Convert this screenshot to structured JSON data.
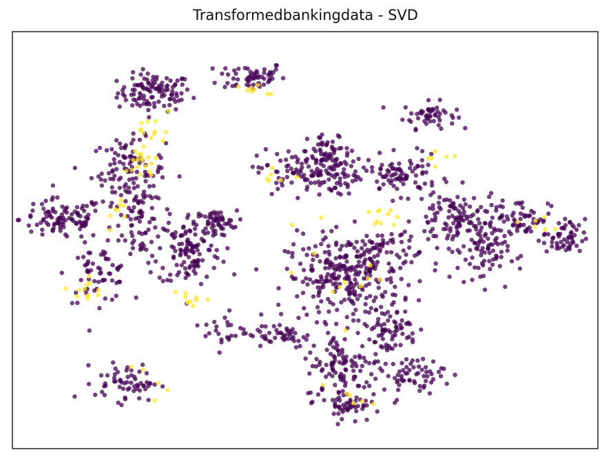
{
  "chart_data": {
    "type": "scatter",
    "title": "Transformedbankingdata - SVD",
    "xlabel": "",
    "ylabel": "",
    "show_ticks": false,
    "grid": false,
    "legend": "none",
    "xlim": [
      -50,
      50
    ],
    "ylim": [
      -40,
      40
    ],
    "class_colors": {
      "class_0": "#440154",
      "class_1": "#fde725"
    },
    "marker_opacity": 0.75,
    "series": [
      {
        "class": 0,
        "points_note": "dark purple clusters",
        "clusters": [
          {
            "x": -25.7,
            "y": 28.3,
            "sx": 3.5,
            "sy": 2.0,
            "n": 110
          },
          {
            "x": -9.2,
            "y": 31.4,
            "sx": 3.2,
            "sy": 1.6,
            "n": 60
          },
          {
            "x": 21.2,
            "y": 24.0,
            "sx": 2.5,
            "sy": 1.4,
            "n": 50
          },
          {
            "x": -30.2,
            "y": 13.1,
            "sx": 3.5,
            "sy": 3.5,
            "n": 110
          },
          {
            "x": -41.5,
            "y": 4.0,
            "sx": 4.0,
            "sy": 2.2,
            "n": 100
          },
          {
            "x": -27.9,
            "y": 3.5,
            "sx": 2.0,
            "sy": 4.0,
            "n": 60
          },
          {
            "x": -35.3,
            "y": -6.5,
            "sx": 3.0,
            "sy": 3.0,
            "n": 60
          },
          {
            "x": -15.3,
            "y": 3.5,
            "sx": 2.0,
            "sy": 1.2,
            "n": 50
          },
          {
            "x": -19.7,
            "y": -1.9,
            "sx": 3.0,
            "sy": 4.0,
            "n": 120
          },
          {
            "x": 0.8,
            "y": 13.1,
            "sx": 5.0,
            "sy": 2.5,
            "n": 140
          },
          {
            "x": 4.1,
            "y": 16.8,
            "sx": 2.0,
            "sy": 2.0,
            "n": 40
          },
          {
            "x": 6.5,
            "y": -7.2,
            "sx": 5.5,
            "sy": 4.5,
            "n": 240
          },
          {
            "x": 12.4,
            "y": -3.5,
            "sx": 4.0,
            "sy": 3.5,
            "n": 80
          },
          {
            "x": 16.4,
            "y": 12.4,
            "sx": 3.5,
            "sy": 2.0,
            "n": 80
          },
          {
            "x": 25.8,
            "y": 4.1,
            "sx": 4.0,
            "sy": 3.0,
            "n": 120
          },
          {
            "x": 37.3,
            "y": 4.4,
            "sx": 2.5,
            "sy": 2.0,
            "n": 50
          },
          {
            "x": 30.4,
            "y": -2.2,
            "sx": 2.5,
            "sy": 3.5,
            "n": 80
          },
          {
            "x": 44.2,
            "y": 0.4,
            "sx": 2.0,
            "sy": 2.0,
            "n": 55
          },
          {
            "x": -30.4,
            "y": -27.3,
            "sx": 3.0,
            "sy": 2.0,
            "n": 60
          },
          {
            "x": -13.7,
            "y": -17.3,
            "sx": 2.0,
            "sy": 2.0,
            "n": 25
          },
          {
            "x": -4.6,
            "y": -18.0,
            "sx": 3.0,
            "sy": 1.5,
            "n": 40
          },
          {
            "x": 6.4,
            "y": -24.4,
            "sx": 3.5,
            "sy": 3.5,
            "n": 100
          },
          {
            "x": 7.4,
            "y": -31.4,
            "sx": 2.0,
            "sy": 2.0,
            "n": 50
          },
          {
            "x": 14.1,
            "y": -17.2,
            "sx": 3.0,
            "sy": 2.5,
            "n": 70
          },
          {
            "x": 18.5,
            "y": -25.8,
            "sx": 3.0,
            "sy": 1.8,
            "n": 60
          }
        ]
      },
      {
        "class": 1,
        "points_note": "yellow points",
        "clusters": [
          {
            "x": -26.2,
            "y": 21.1,
            "sx": 2.0,
            "sy": 1.5,
            "n": 12
          },
          {
            "x": -28.0,
            "y": 15.2,
            "sx": 1.5,
            "sy": 2.0,
            "n": 18
          },
          {
            "x": -31.5,
            "y": 4.9,
            "sx": 1.0,
            "sy": 2.0,
            "n": 8
          },
          {
            "x": -37.6,
            "y": -9.7,
            "sx": 1.5,
            "sy": 1.5,
            "n": 12
          },
          {
            "x": -20.0,
            "y": -11.0,
            "sx": 2.0,
            "sy": 1.0,
            "n": 10
          },
          {
            "x": -9.2,
            "y": 28.6,
            "sx": 1.5,
            "sy": 1.0,
            "n": 8
          },
          {
            "x": 13.3,
            "y": 4.2,
            "sx": 1.5,
            "sy": 1.0,
            "n": 10
          },
          {
            "x": -4.6,
            "y": 12.4,
            "sx": 2.0,
            "sy": 1.0,
            "n": 6
          },
          {
            "x": 21.8,
            "y": 16.1,
            "sx": 2.0,
            "sy": 1.0,
            "n": 6
          },
          {
            "x": 39.0,
            "y": 3.0,
            "sx": 2.0,
            "sy": 1.5,
            "n": 6
          },
          {
            "x": -27.2,
            "y": -27.0,
            "sx": 3.0,
            "sy": 2.0,
            "n": 5
          },
          {
            "x": 7.5,
            "y": -31.0,
            "sx": 2.5,
            "sy": 1.0,
            "n": 6
          },
          {
            "x": 6.0,
            "y": -6.0,
            "sx": 6.0,
            "sy": 5.0,
            "n": 12
          }
        ]
      }
    ]
  }
}
